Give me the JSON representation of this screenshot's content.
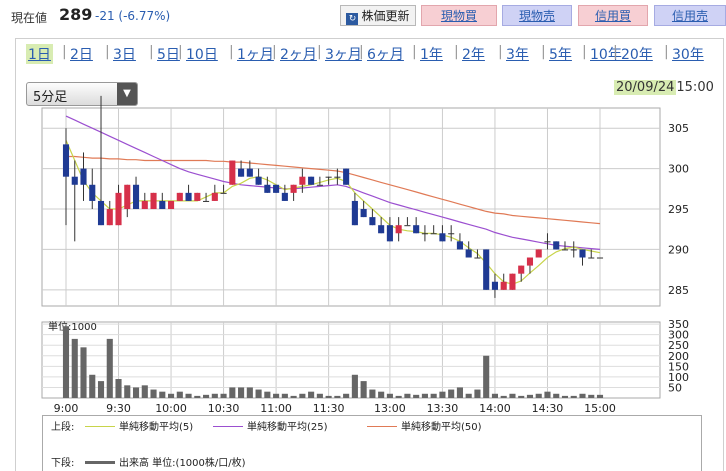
{
  "header": {
    "price_label": "現在値",
    "price_value": "289",
    "price_change": "-21 (-6.77%)",
    "refresh_label": "株価更新",
    "buttons": [
      "現物買",
      "現物売",
      "信用買",
      "信用売"
    ]
  },
  "periods": [
    "1日",
    "2日",
    "3日",
    "5日",
    "10日",
    "1ヶ月",
    "2ヶ月",
    "3ヶ月",
    "6ヶ月",
    "1年",
    "2年",
    "3年",
    "5年",
    "10年",
    "20年",
    "30年"
  ],
  "selected_period": "1日",
  "interval_select": {
    "value": "5分足"
  },
  "datetime": {
    "date": "20/09/24",
    "time": "15:00"
  },
  "colors": {
    "up": "#d6304a",
    "down": "#1f3a93",
    "ma5": "#c8d44a",
    "ma25": "#9b4fd0",
    "ma50": "#e07a56",
    "volume": "#666666",
    "highlight": "#d8ecb2"
  },
  "chart_data": [
    {
      "type": "candlestick",
      "title": "",
      "x_ticks": [
        "9:00",
        "9:30",
        "10:00",
        "10:30",
        "11:00",
        "11:30",
        "13:00",
        "13:30",
        "14:00",
        "14:30",
        "15:00"
      ],
      "y_ticks": [
        285,
        290,
        295,
        300,
        305
      ],
      "ylim": [
        283,
        307.5
      ],
      "grid": true,
      "candles": [
        {
          "t": "9:00",
          "o": 303,
          "h": 305,
          "l": 293,
          "c": 299
        },
        {
          "t": "9:05",
          "o": 299,
          "h": 301,
          "l": 291,
          "c": 298
        },
        {
          "t": "9:10",
          "o": 300,
          "h": 302,
          "l": 296,
          "c": 298
        },
        {
          "t": "9:15",
          "o": 298,
          "h": 300,
          "l": 295,
          "c": 296
        },
        {
          "t": "9:20",
          "o": 296,
          "h": 309,
          "l": 293,
          "c": 293
        },
        {
          "t": "9:25",
          "o": 293,
          "h": 296,
          "l": 293,
          "c": 295
        },
        {
          "t": "9:30",
          "o": 293,
          "h": 298,
          "l": 293,
          "c": 297
        },
        {
          "t": "9:35",
          "o": 295,
          "h": 298,
          "l": 294,
          "c": 298
        },
        {
          "t": "9:40",
          "o": 298,
          "h": 299,
          "l": 295,
          "c": 295
        },
        {
          "t": "9:45",
          "o": 295,
          "h": 297,
          "l": 295,
          "c": 296
        },
        {
          "t": "9:50",
          "o": 295,
          "h": 297,
          "l": 295,
          "c": 297
        },
        {
          "t": "9:55",
          "o": 296,
          "h": 297,
          "l": 295,
          "c": 295
        },
        {
          "t": "10:00",
          "o": 295,
          "h": 296,
          "l": 295,
          "c": 296
        },
        {
          "t": "10:05",
          "o": 296,
          "h": 297,
          "l": 296,
          "c": 297
        },
        {
          "t": "10:10",
          "o": 297,
          "h": 298,
          "l": 296,
          "c": 296
        },
        {
          "t": "10:15",
          "o": 296,
          "h": 297,
          "l": 296,
          "c": 297
        },
        {
          "t": "10:20",
          "o": 296,
          "h": 297,
          "l": 296,
          "c": 296
        },
        {
          "t": "10:25",
          "o": 296,
          "h": 298,
          "l": 296,
          "c": 297
        },
        {
          "t": "10:30",
          "o": 297,
          "h": 298,
          "l": 297,
          "c": 297
        },
        {
          "t": "10:35",
          "o": 298,
          "h": 301,
          "l": 298,
          "c": 301
        },
        {
          "t": "10:40",
          "o": 300,
          "h": 301,
          "l": 299,
          "c": 299
        },
        {
          "t": "10:45",
          "o": 300,
          "h": 301,
          "l": 299,
          "c": 299
        },
        {
          "t": "10:50",
          "o": 299,
          "h": 300,
          "l": 298,
          "c": 298
        },
        {
          "t": "10:55",
          "o": 298,
          "h": 299,
          "l": 297,
          "c": 297
        },
        {
          "t": "11:00",
          "o": 298,
          "h": 298,
          "l": 297,
          "c": 297
        },
        {
          "t": "11:05",
          "o": 297,
          "h": 298,
          "l": 296,
          "c": 296
        },
        {
          "t": "11:10",
          "o": 297,
          "h": 298,
          "l": 296,
          "c": 298
        },
        {
          "t": "11:15",
          "o": 298,
          "h": 300,
          "l": 297,
          "c": 299
        },
        {
          "t": "11:20",
          "o": 299,
          "h": 299,
          "l": 298,
          "c": 298
        },
        {
          "t": "11:25",
          "o": 298,
          "h": 299,
          "l": 298,
          "c": 298
        },
        {
          "t": "11:30",
          "o": 299,
          "h": 299,
          "l": 298,
          "c": 299
        },
        {
          "t": "12:30",
          "o": 299,
          "h": 300,
          "l": 298,
          "c": 299
        },
        {
          "t": "12:35",
          "o": 300,
          "h": 300,
          "l": 298,
          "c": 298
        },
        {
          "t": "12:40",
          "o": 296,
          "h": 297,
          "l": 293,
          "c": 293
        },
        {
          "t": "12:45",
          "o": 295,
          "h": 296,
          "l": 294,
          "c": 294
        },
        {
          "t": "12:50",
          "o": 294,
          "h": 295,
          "l": 293,
          "c": 293
        },
        {
          "t": "12:55",
          "o": 293,
          "h": 294,
          "l": 292,
          "c": 292
        },
        {
          "t": "13:00",
          "o": 293,
          "h": 294,
          "l": 291,
          "c": 291
        },
        {
          "t": "13:05",
          "o": 292,
          "h": 294,
          "l": 291,
          "c": 293
        },
        {
          "t": "13:10",
          "o": 293,
          "h": 294,
          "l": 293,
          "c": 293
        },
        {
          "t": "13:15",
          "o": 293,
          "h": 294,
          "l": 292,
          "c": 292
        },
        {
          "t": "13:20",
          "o": 292,
          "h": 293,
          "l": 291,
          "c": 292
        },
        {
          "t": "13:25",
          "o": 292,
          "h": 293,
          "l": 292,
          "c": 292
        },
        {
          "t": "13:30",
          "o": 292,
          "h": 293,
          "l": 291,
          "c": 291
        },
        {
          "t": "13:35",
          "o": 292,
          "h": 293,
          "l": 291,
          "c": 292
        },
        {
          "t": "13:40",
          "o": 291,
          "h": 292,
          "l": 290,
          "c": 290
        },
        {
          "t": "13:45",
          "o": 290,
          "h": 291,
          "l": 289,
          "c": 289
        },
        {
          "t": "13:50",
          "o": 289,
          "h": 290,
          "l": 289,
          "c": 289
        },
        {
          "t": "13:55",
          "o": 290,
          "h": 290,
          "l": 285,
          "c": 285
        },
        {
          "t": "14:00",
          "o": 286,
          "h": 287,
          "l": 284,
          "c": 285
        },
        {
          "t": "14:05",
          "o": 285,
          "h": 287,
          "l": 285,
          "c": 286
        },
        {
          "t": "14:10",
          "o": 285,
          "h": 287,
          "l": 285,
          "c": 287
        },
        {
          "t": "14:15",
          "o": 287,
          "h": 288,
          "l": 286,
          "c": 288
        },
        {
          "t": "14:20",
          "o": 288,
          "h": 289,
          "l": 287,
          "c": 289
        },
        {
          "t": "14:25",
          "o": 289,
          "h": 290,
          "l": 289,
          "c": 290
        },
        {
          "t": "14:30",
          "o": 291,
          "h": 292,
          "l": 290,
          "c": 291
        },
        {
          "t": "14:35",
          "o": 291,
          "h": 291,
          "l": 290,
          "c": 290
        },
        {
          "t": "14:40",
          "o": 290,
          "h": 291,
          "l": 290,
          "c": 290
        },
        {
          "t": "14:45",
          "o": 290,
          "h": 291,
          "l": 289,
          "c": 290
        },
        {
          "t": "14:50",
          "o": 290,
          "h": 290,
          "l": 288,
          "c": 289
        },
        {
          "t": "14:55",
          "o": 289,
          "h": 290,
          "l": 289,
          "c": 289
        },
        {
          "t": "15:00",
          "o": 289,
          "h": 289,
          "l": 289,
          "c": 289
        }
      ],
      "ma5": [
        303.5,
        301,
        298.5,
        297,
        296,
        295,
        295,
        295.5,
        296,
        296,
        296,
        296,
        296,
        296,
        296,
        296,
        296.5,
        297,
        297,
        297.8,
        298.2,
        298.8,
        299,
        298.6,
        298,
        297.4,
        297.6,
        297.8,
        298,
        298.3,
        298.6,
        298.8,
        298.4,
        297,
        296,
        295,
        294,
        293,
        292.5,
        292.3,
        292.2,
        292,
        292,
        291.8,
        291.5,
        291,
        290.2,
        289.5,
        288.3,
        287,
        286,
        285.7,
        286.1,
        287.1,
        288,
        289,
        289.7,
        290.1,
        290.3,
        290,
        289.8,
        289.6
      ],
      "ma25": [
        306.5,
        306,
        305.5,
        305,
        304.5,
        304,
        303.5,
        303,
        302.5,
        302,
        301.5,
        301,
        300.5,
        300,
        299.6,
        299.3,
        299,
        298.7,
        298.4,
        298.2,
        298,
        297.9,
        297.8,
        297.7,
        297.6,
        297.5,
        297.5,
        297.6,
        297.7,
        297.8,
        297.9,
        298,
        297.8,
        297.4,
        297,
        296.6,
        296.2,
        295.8,
        295.5,
        295.2,
        294.9,
        294.6,
        294.3,
        294,
        293.7,
        293.4,
        293.1,
        292.8,
        292.5,
        292.1,
        291.8,
        291.5,
        291.3,
        291.1,
        290.9,
        290.7,
        290.5,
        290.4,
        290.3,
        290.2,
        290.1,
        290
      ],
      "ma50": [
        301.5,
        301.5,
        301.4,
        301.3,
        301.3,
        301.2,
        301.2,
        301.1,
        301.1,
        301,
        301,
        301,
        301,
        301,
        301,
        301,
        301,
        300.9,
        300.9,
        300.8,
        300.8,
        300.7,
        300.6,
        300.5,
        300.4,
        300.3,
        300.2,
        300.1,
        300,
        299.9,
        299.8,
        299.7,
        299.5,
        299.2,
        298.9,
        298.6,
        298.3,
        298,
        297.7,
        297.4,
        297.1,
        296.8,
        296.5,
        296.2,
        295.9,
        295.6,
        295.3,
        295,
        294.7,
        294.5,
        294.4,
        294.2,
        294.1,
        294,
        293.9,
        293.8,
        293.7,
        293.6,
        293.5,
        293.4,
        293.3,
        293.2
      ]
    },
    {
      "type": "bar",
      "title": "",
      "unit_label": "単位:1000",
      "y_ticks": [
        50,
        100,
        150,
        200,
        250,
        300,
        350
      ],
      "ylim": [
        0,
        360
      ],
      "values": [
        340,
        280,
        240,
        110,
        80,
        280,
        90,
        60,
        50,
        60,
        40,
        30,
        20,
        30,
        20,
        10,
        15,
        20,
        20,
        50,
        50,
        50,
        40,
        30,
        20,
        20,
        10,
        20,
        30,
        20,
        10,
        10,
        20,
        110,
        80,
        40,
        30,
        20,
        10,
        20,
        15,
        20,
        20,
        30,
        40,
        50,
        20,
        40,
        200,
        20,
        10,
        20,
        10,
        15,
        20,
        30,
        20,
        10,
        10,
        20,
        15,
        15
      ]
    }
  ],
  "legend": {
    "upper_label": "上段:",
    "lower_label": "下段:",
    "ma5_label": "単純移動平均(5)",
    "ma25_label": "単純移動平均(25)",
    "ma50_label": "単純移動平均(50)",
    "volume_label": "出来高 単位:(1000株/口/枚)"
  }
}
